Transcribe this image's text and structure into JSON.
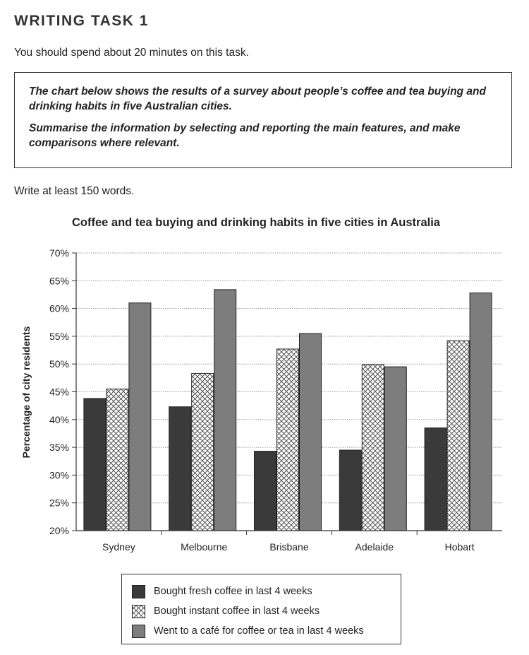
{
  "header": {
    "title": "WRITING TASK 1",
    "instruction": "You should spend about 20 minutes on this task."
  },
  "task_box": {
    "line1": "The chart below shows the results of a survey about people’s coffee and tea buying and drinking habits in five Australian cities.",
    "line2": "Summarise the information by selecting and reporting the main features, and make comparisons where relevant."
  },
  "word_count": "Write at least 150 words.",
  "colors": {
    "fresh": "#3a3a3a",
    "instant_hatch": "#555555",
    "cafe": "#7d7d7d",
    "grid": "#9a9a9a"
  },
  "chart_data": {
    "type": "bar",
    "title": "Coffee and tea buying and drinking habits in five cities in Australia",
    "ylabel": "Percentage of city residents",
    "xlabel": "",
    "ylim": [
      20,
      70
    ],
    "y_ticks": [
      "20%",
      "25%",
      "30%",
      "35%",
      "40%",
      "45%",
      "50%",
      "55%",
      "60%",
      "65%",
      "70%"
    ],
    "categories": [
      "Sydney",
      "Melbourne",
      "Brisbane",
      "Adelaide",
      "Hobart"
    ],
    "series": [
      {
        "name": "Bought fresh coffee in last 4 weeks",
        "values": [
          43.8,
          42.3,
          34.3,
          34.5,
          38.5
        ]
      },
      {
        "name": "Bought instant coffee in last 4 weeks",
        "values": [
          45.5,
          48.3,
          52.7,
          49.9,
          54.2
        ]
      },
      {
        "name": "Went to a café for coffee or tea in last 4 weeks",
        "values": [
          61.0,
          63.4,
          55.5,
          49.5,
          62.8
        ]
      }
    ],
    "grid": true,
    "legend": "bottom"
  }
}
